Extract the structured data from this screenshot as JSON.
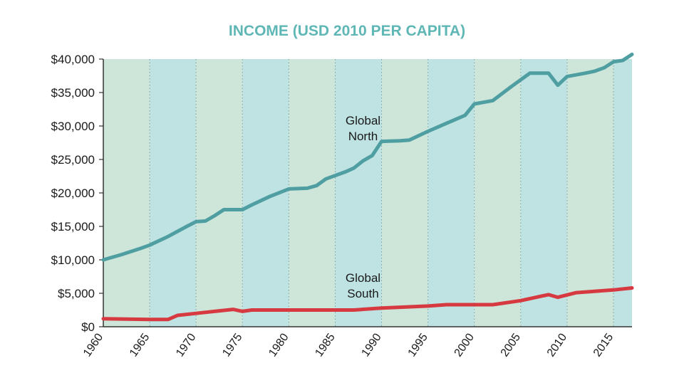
{
  "chart_data": {
    "type": "line",
    "title": "INCOME (USD 2010 PER CAPITA)",
    "xlabel": "",
    "ylabel": "",
    "xlim": [
      1960,
      2017
    ],
    "ylim": [
      0,
      40000
    ],
    "y_ticks": [
      0,
      5000,
      10000,
      15000,
      20000,
      25000,
      30000,
      35000,
      40000
    ],
    "y_tick_labels": [
      "$0",
      "$5,000",
      "$10,000",
      "$15,000",
      "$20,000",
      "$25,000",
      "$30,000",
      "$35,000",
      "$40,000"
    ],
    "x_ticks": [
      1960,
      1965,
      1970,
      1975,
      1980,
      1985,
      1990,
      1995,
      2000,
      2005,
      2010,
      2015
    ],
    "x_tick_labels": [
      "1960",
      "1965",
      "1970",
      "1975",
      "1980",
      "1985",
      "1990",
      "1995",
      "2000",
      "2005",
      "2010",
      "2015"
    ],
    "band_colors": [
      "#cde6d9",
      "#bfe2e3"
    ],
    "grid": "vertical dotted",
    "series": [
      {
        "name": "Global North",
        "label_lines": [
          "Global",
          "North"
        ],
        "color": "#4f9ea2",
        "x": [
          1960,
          1962,
          1964,
          1965,
          1967,
          1969,
          1970,
          1971,
          1972,
          1973,
          1975,
          1976,
          1978,
          1980,
          1982,
          1983,
          1984,
          1986,
          1987,
          1988,
          1989,
          1990,
          1992,
          1993,
          1995,
          1997,
          1998,
          1999,
          2000,
          2002,
          2004,
          2006,
          2007,
          2008,
          2009,
          2010,
          2012,
          2013,
          2014,
          2015,
          2016,
          2017
        ],
        "values": [
          10000,
          10800,
          11700,
          12200,
          13500,
          15000,
          15700,
          15800,
          16600,
          17500,
          17500,
          18200,
          19500,
          20600,
          20700,
          21100,
          22100,
          23100,
          23700,
          24800,
          25600,
          27700,
          27800,
          27900,
          29200,
          30400,
          31000,
          31600,
          33300,
          33800,
          35900,
          37900,
          37900,
          37900,
          36100,
          37400,
          37900,
          38200,
          38700,
          39600,
          39800,
          40700
        ]
      },
      {
        "name": "Global South",
        "label_lines": [
          "Global",
          "South"
        ],
        "color": "#d63a40",
        "x": [
          1960,
          1965,
          1967,
          1968,
          1970,
          1972,
          1974,
          1975,
          1976,
          1980,
          1985,
          1987,
          1990,
          1995,
          1997,
          2002,
          2005,
          2008,
          2009,
          2011,
          2015,
          2017
        ],
        "values": [
          1200,
          1100,
          1100,
          1700,
          2000,
          2300,
          2600,
          2300,
          2500,
          2500,
          2500,
          2500,
          2800,
          3100,
          3300,
          3300,
          3900,
          4800,
          4400,
          5100,
          5500,
          5800
        ]
      }
    ]
  }
}
